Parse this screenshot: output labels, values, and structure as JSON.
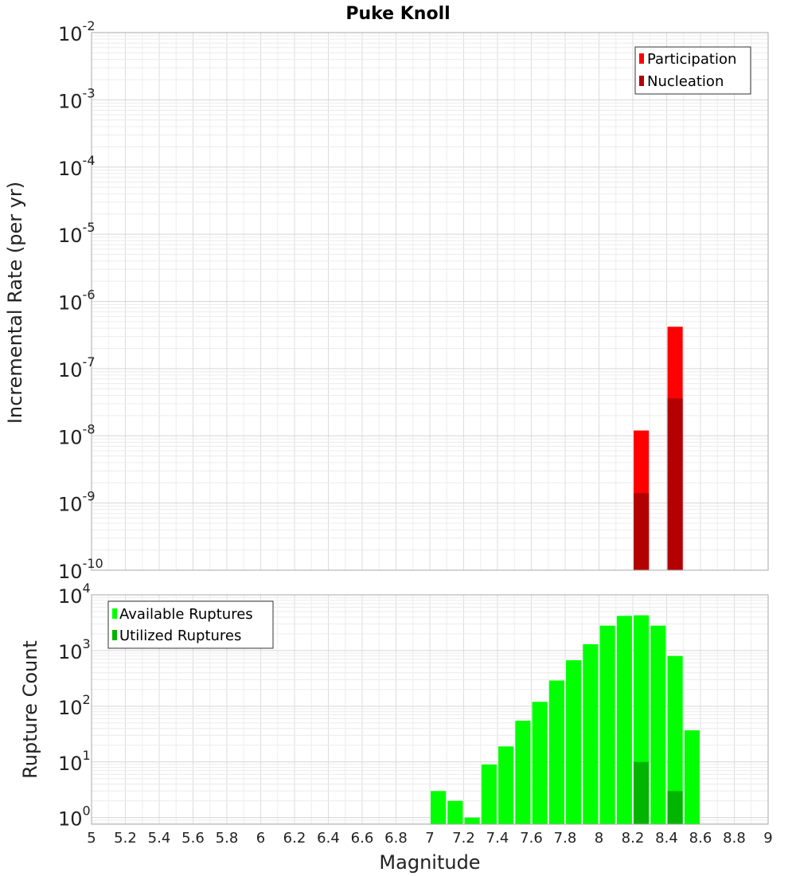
{
  "chart_data": [
    {
      "type": "bar",
      "title": "Puke Knoll",
      "xlabel": "",
      "ylabel": "Incremental Rate (per yr)",
      "xlim": [
        5,
        9
      ],
      "ylim": [
        1e-10,
        0.01
      ],
      "yscale": "log",
      "ytick_exponents": [
        "-2",
        "-3",
        "-4",
        "-5",
        "-6",
        "-7",
        "-8",
        "-9",
        "-10"
      ],
      "grid": true,
      "legend_position": "top-right",
      "bar_width": 0.09,
      "series": [
        {
          "name": "Participation",
          "color": "#ff0000",
          "x": [
            8.25,
            8.45
          ],
          "values": [
            1.2e-08,
            4.2e-07
          ]
        },
        {
          "name": "Nucleation",
          "color": "#b30000",
          "x": [
            8.25,
            8.45
          ],
          "values": [
            1.4e-09,
            3.6e-08
          ]
        }
      ]
    },
    {
      "type": "bar",
      "title": "",
      "xlabel": "Magnitude",
      "ylabel": "Rupture Count",
      "xlim": [
        5,
        9
      ],
      "ylim": [
        0.76,
        10000
      ],
      "yscale": "log",
      "ytick_exponents": [
        "4",
        "3",
        "2",
        "1",
        "0"
      ],
      "xticks": [
        "5",
        "5.2",
        "5.4",
        "5.6",
        "5.8",
        "6",
        "6.2",
        "6.4",
        "6.6",
        "6.8",
        "7",
        "7.2",
        "7.4",
        "7.6",
        "7.8",
        "8",
        "8.2",
        "8.4",
        "8.6",
        "8.8",
        "9"
      ],
      "grid": true,
      "legend_position": "top-left",
      "bar_width": 0.09,
      "series": [
        {
          "name": "Available Ruptures",
          "color": "#00ff00",
          "x": [
            7.05,
            7.15,
            7.25,
            7.35,
            7.45,
            7.55,
            7.65,
            7.75,
            7.85,
            7.95,
            8.05,
            8.15,
            8.25,
            8.35,
            8.45,
            8.55
          ],
          "values": [
            3,
            2,
            1,
            9,
            19,
            55,
            120,
            290,
            670,
            1300,
            2800,
            4200,
            4300,
            2800,
            800,
            37
          ]
        },
        {
          "name": "Utilized Ruptures",
          "color": "#00b400",
          "x": [
            8.25,
            8.45
          ],
          "values": [
            10,
            3
          ]
        }
      ]
    }
  ]
}
